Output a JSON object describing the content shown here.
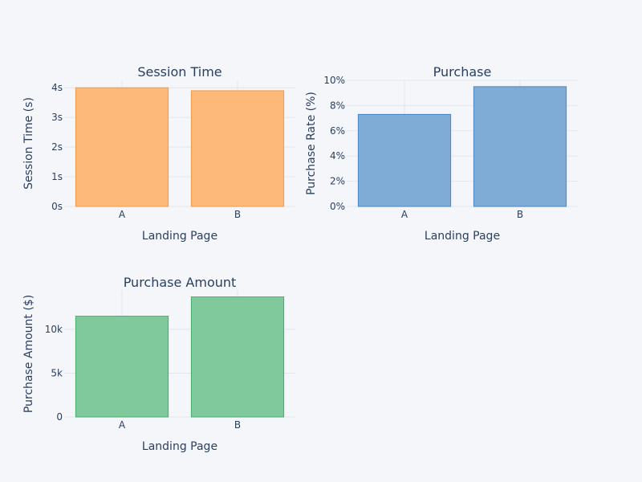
{
  "chart_data": [
    {
      "type": "bar",
      "title": "Session Time",
      "xlabel": "Landing Page",
      "ylabel": "Session Time (s)",
      "categories": [
        "A",
        "B"
      ],
      "values": [
        4.0,
        3.9
      ],
      "ylim": [
        0,
        4.25
      ],
      "ytick_values": [
        0,
        1,
        2,
        3,
        4
      ],
      "ytick_labels": [
        "0s",
        "1s",
        "2s",
        "3s",
        "4s"
      ],
      "color": "#fdb97a",
      "edge_color": "#f59a45",
      "grid": true
    },
    {
      "type": "bar",
      "title": "Purchase",
      "xlabel": "Landing Page",
      "ylabel": "Purchase Rate (%)",
      "categories": [
        "A",
        "B"
      ],
      "values": [
        7.3,
        9.5
      ],
      "ylim": [
        0,
        10
      ],
      "ytick_values": [
        0,
        2,
        4,
        6,
        8,
        10
      ],
      "ytick_labels": [
        "0%",
        "2%",
        "4%",
        "6%",
        "8%",
        "10%"
      ],
      "color": "#7facd6",
      "edge_color": "#4a86c2",
      "grid": true
    },
    {
      "type": "bar",
      "title": "Purchase Amount",
      "xlabel": "Landing Page",
      "ylabel": "Purchase Amount ($)",
      "categories": [
        "A",
        "B"
      ],
      "values": [
        11500,
        13700
      ],
      "ylim": [
        0,
        14400
      ],
      "ytick_values": [
        0,
        5000,
        10000
      ],
      "ytick_labels": [
        "0",
        "5k",
        "10k"
      ],
      "color": "#80c99c",
      "edge_color": "#42ad6a",
      "grid": true
    }
  ]
}
